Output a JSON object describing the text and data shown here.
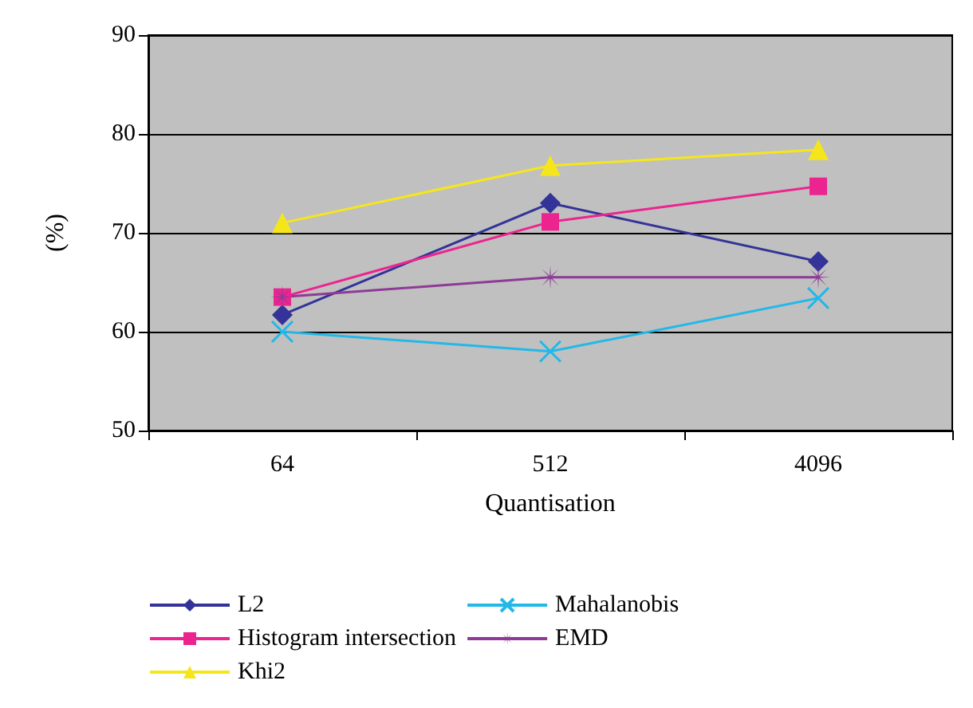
{
  "chart_data": {
    "type": "line",
    "xlabel": "Quantisation",
    "ylabel": "(%)",
    "categories": [
      "64",
      "512",
      "4096"
    ],
    "ylim": [
      50,
      90
    ],
    "yticks": [
      50,
      60,
      70,
      80,
      90
    ],
    "grid": "y",
    "legend": "bottom",
    "series": [
      {
        "name": "L2",
        "color": "#333399",
        "marker": "diamond",
        "values": [
          61.7,
          73.0,
          67.1
        ]
      },
      {
        "name": "Histogram intersection",
        "color": "#ec2490",
        "marker": "square",
        "values": [
          63.5,
          71.1,
          74.7
        ]
      },
      {
        "name": "Khi2",
        "color": "#f5e61c",
        "marker": "triangle",
        "values": [
          71.0,
          76.8,
          78.4
        ]
      },
      {
        "name": "Mahalanobis",
        "color": "#22b8e8",
        "marker": "cross",
        "values": [
          60.0,
          58.0,
          63.4
        ]
      },
      {
        "name": "EMD",
        "color": "#8e3a96",
        "marker": "star",
        "values": [
          63.5,
          65.5,
          65.5
        ]
      }
    ]
  }
}
